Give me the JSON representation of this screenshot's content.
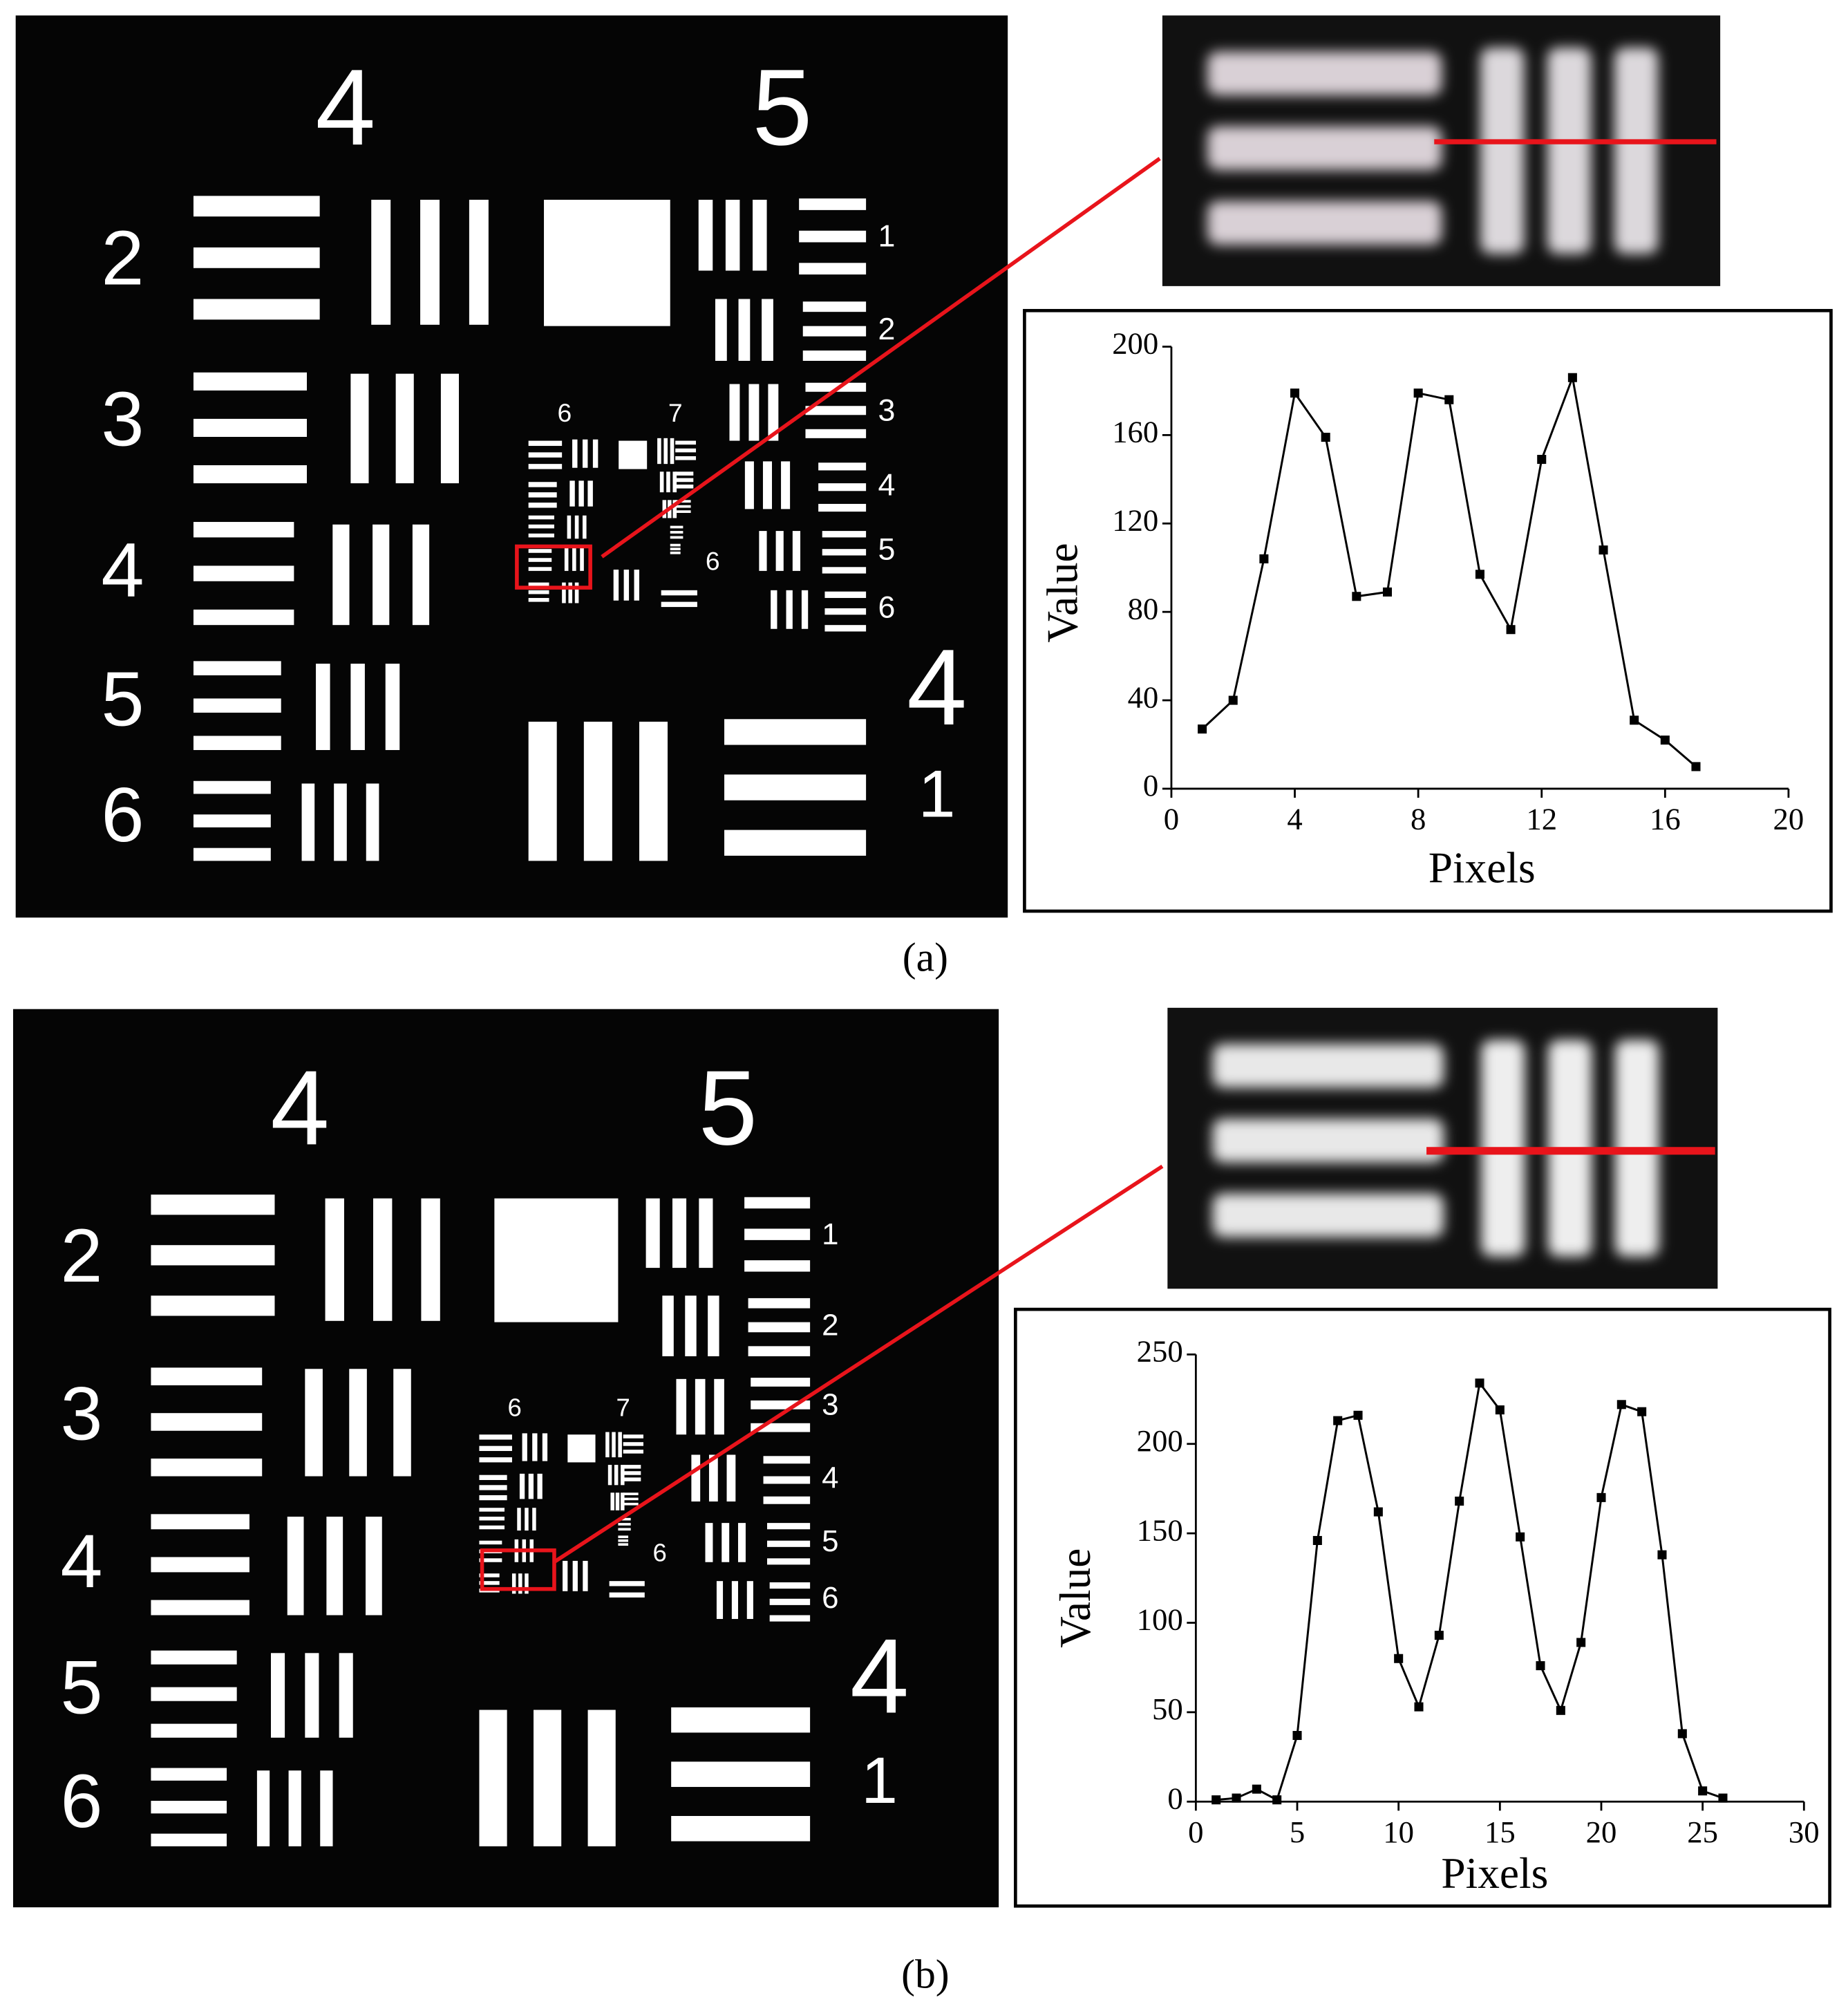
{
  "figure": {
    "panels": [
      {
        "label": "(a)",
        "target": {
          "group_labels": [
            "4",
            "5"
          ],
          "element_labels_left": [
            "2",
            "3",
            "4",
            "5",
            "6"
          ],
          "element_labels_right": [
            "1",
            "2",
            "3",
            "4",
            "5",
            "6"
          ],
          "inner_group_labels": [
            "6",
            "7"
          ],
          "inner_element_label": "6",
          "corner_group_label": "4",
          "corner_element_label": "1"
        }
      },
      {
        "label": "(b)",
        "target": {
          "group_labels": [
            "4",
            "5"
          ],
          "element_labels_left": [
            "2",
            "3",
            "4",
            "5",
            "6"
          ],
          "element_labels_right": [
            "1",
            "2",
            "3",
            "4",
            "5",
            "6"
          ],
          "inner_group_labels": [
            "6",
            "7"
          ],
          "inner_element_label": "6",
          "corner_group_label": "4",
          "corner_element_label": "1"
        }
      }
    ]
  },
  "chart_data": [
    {
      "type": "line",
      "x_label": "Pixels",
      "y_label": "Value",
      "x": [
        1,
        2,
        3,
        4,
        5,
        6,
        7,
        8,
        9,
        10,
        11,
        12,
        13,
        14,
        15,
        16,
        17
      ],
      "series": [
        {
          "color": "#000000",
          "values": [
            27,
            40,
            104,
            179,
            159,
            87,
            89,
            179,
            176,
            97,
            72,
            149,
            186,
            108,
            31,
            22,
            10
          ]
        }
      ],
      "xlim": [
        0,
        20
      ],
      "xticks": [
        0,
        4,
        8,
        12,
        16,
        20
      ],
      "ylim": [
        0,
        200
      ],
      "yticks": [
        0,
        40,
        80,
        120,
        160,
        200
      ]
    },
    {
      "type": "line",
      "x_label": "Pixels",
      "y_label": "Value",
      "x": [
        1,
        2,
        3,
        4,
        5,
        6,
        7,
        8,
        9,
        10,
        11,
        12,
        13,
        14,
        15,
        16,
        17,
        18,
        19,
        20,
        21,
        22,
        23,
        24,
        25,
        26
      ],
      "series": [
        {
          "color": "#000000",
          "values": [
            1,
            2,
            7,
            1,
            37,
            146,
            213,
            216,
            162,
            80,
            53,
            93,
            168,
            234,
            219,
            148,
            76,
            51,
            89,
            170,
            222,
            218,
            138,
            38,
            6,
            2
          ]
        }
      ],
      "xlim": [
        0,
        30
      ],
      "xticks": [
        0,
        5,
        10,
        15,
        20,
        25,
        30
      ],
      "ylim": [
        0,
        250
      ],
      "yticks": [
        0,
        50,
        100,
        150,
        200,
        250
      ]
    }
  ]
}
